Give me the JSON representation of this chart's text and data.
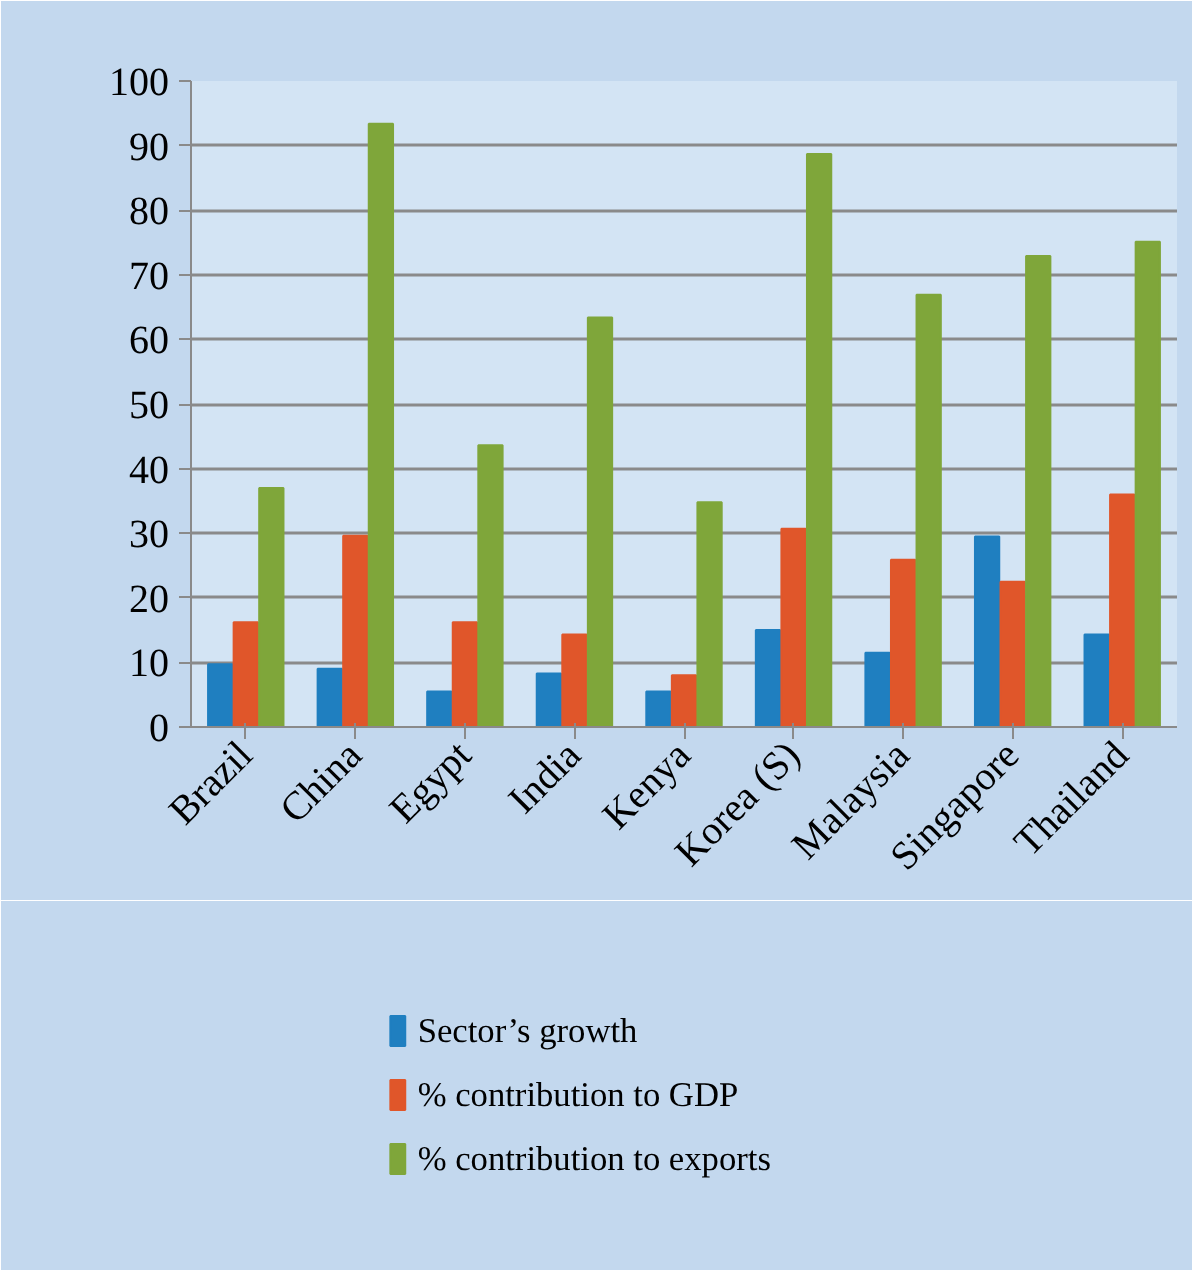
{
  "chart_data": {
    "type": "bar",
    "categories": [
      "Brazil",
      "China",
      "Egypt",
      "India",
      "Kenya",
      "Korea (S)",
      "Malaysia",
      "Singapore",
      "Thailand"
    ],
    "series": [
      {
        "name": "Sector’s growth",
        "color": "#1f7fc0",
        "values": [
          9.7,
          9.0,
          5.5,
          8.3,
          5.5,
          15.0,
          11.5,
          29.5,
          14.3
        ]
      },
      {
        "name": "% contribution to GDP",
        "color": "#e0562a",
        "values": [
          16.2,
          29.6,
          16.2,
          14.3,
          8.0,
          30.7,
          25.9,
          22.5,
          36.0
        ]
      },
      {
        "name": "% contribution to exports",
        "color": "#7fa63a",
        "values": [
          37.0,
          93.4,
          43.6,
          63.4,
          34.8,
          88.7,
          66.9,
          72.9,
          75.1
        ]
      }
    ],
    "ylim": [
      0,
      100
    ],
    "yticks": [
      0,
      10,
      20,
      30,
      40,
      50,
      60,
      70,
      80,
      90,
      100
    ],
    "grid": "y",
    "legend": "bottom"
  }
}
